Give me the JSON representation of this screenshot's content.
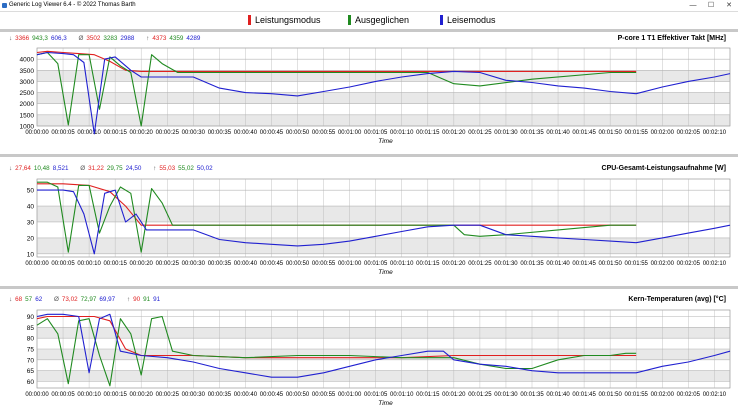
{
  "window": {
    "title": "Generic Log Viewer 6.4 - © 2022 Thomas Barth",
    "minimize_label": "—",
    "maximize_label": "☐",
    "close_label": "✕"
  },
  "legend": [
    {
      "label": "Leistungsmodus",
      "color": "#e02020"
    },
    {
      "label": "Ausgeglichen",
      "color": "#208a20"
    },
    {
      "label": "Leisemodus",
      "color": "#2020d0"
    }
  ],
  "colors": {
    "series": [
      "#e02020",
      "#208a20",
      "#2020d0"
    ],
    "grid": "#b4b4b4",
    "band": "#e8e8e8",
    "stats_grey": "#555555"
  },
  "x_tick_labels": [
    "00:00:00",
    "00:00:05",
    "00:00:10",
    "00:00:15",
    "00:00:20",
    "00:00:25",
    "00:00:30",
    "00:00:35",
    "00:00:40",
    "00:00:45",
    "00:00:50",
    "00:00:55",
    "00:01:00",
    "00:01:05",
    "00:01:10",
    "00:01:15",
    "00:01:20",
    "00:01:25",
    "00:01:30",
    "00:01:35",
    "00:01:40",
    "00:01:45",
    "00:01:50",
    "00:01:55",
    "00:02:00",
    "00:02:05",
    "00:02:10"
  ],
  "chart_data": [
    {
      "type": "line",
      "title": "P-core 1 T1 Effektiver Takt [MHz]",
      "xlabel": "Time",
      "ylabel": "",
      "xlim": [
        0,
        133
      ],
      "ylim": [
        1000,
        4500
      ],
      "yticks": [
        1000,
        1500,
        2000,
        2500,
        3000,
        3500,
        4000
      ],
      "grid": true,
      "stats": {
        "min": [
          "3366",
          "943,3",
          "606,3"
        ],
        "avg": [
          "3502",
          "3283",
          "2988"
        ],
        "max": [
          "4373",
          "4359",
          "4289"
        ]
      },
      "series": [
        {
          "name": "Leistungsmodus",
          "x": [
            0,
            2,
            5,
            8,
            11,
            14,
            17,
            20,
            30,
            60,
            75,
            80,
            100,
            115
          ],
          "y": [
            4300,
            4350,
            4300,
            4250,
            4200,
            3900,
            3500,
            3450,
            3450,
            3450,
            3450,
            3450,
            3450,
            3450
          ]
        },
        {
          "name": "Ausgeglichen",
          "x": [
            0,
            2,
            4,
            6,
            8,
            10,
            12,
            14,
            16,
            18,
            20,
            22,
            24,
            27,
            45,
            60,
            75,
            80,
            85,
            95,
            110,
            115
          ],
          "y": [
            4200,
            4300,
            3800,
            1050,
            4200,
            4200,
            1750,
            4100,
            3700,
            3400,
            1000,
            4200,
            3800,
            3400,
            3400,
            3400,
            3400,
            2900,
            2800,
            3100,
            3400,
            3400
          ]
        },
        {
          "name": "Leisemodus",
          "x": [
            0,
            2,
            5,
            7,
            9,
            11,
            13,
            15,
            18,
            20,
            25,
            30,
            35,
            40,
            45,
            50,
            55,
            60,
            65,
            70,
            75,
            80,
            85,
            90,
            95,
            100,
            105,
            110,
            115,
            120,
            125,
            130,
            133
          ],
          "y": [
            4200,
            4300,
            4250,
            4200,
            3850,
            650,
            4000,
            4100,
            3500,
            3200,
            3200,
            3200,
            2700,
            2500,
            2450,
            2350,
            2550,
            2750,
            3000,
            3200,
            3350,
            3450,
            3400,
            3050,
            2950,
            2800,
            2700,
            2550,
            2450,
            2750,
            3000,
            3200,
            3350
          ]
        }
      ]
    },
    {
      "type": "line",
      "title": "CPU-Gesamt-Leistungsaufnahme [W]",
      "xlabel": "Time",
      "ylabel": "",
      "xlim": [
        0,
        133
      ],
      "ylim": [
        8,
        57
      ],
      "yticks": [
        10,
        20,
        30,
        40,
        50
      ],
      "grid": true,
      "stats": {
        "min": [
          "27,64",
          "10,48",
          "8,521"
        ],
        "avg": [
          "31,22",
          "29,75",
          "24,50"
        ],
        "max": [
          "55,03",
          "55,02",
          "50,02"
        ]
      },
      "series": [
        {
          "name": "Leistungsmodus",
          "x": [
            0,
            5,
            10,
            14,
            17,
            20,
            25,
            60,
            80,
            100,
            115
          ],
          "y": [
            54,
            54,
            53,
            49,
            40,
            28,
            28,
            28,
            28,
            28,
            28
          ]
        },
        {
          "name": "Ausgeglichen",
          "x": [
            0,
            2,
            4,
            6,
            8,
            10,
            12,
            14,
            16,
            18,
            20,
            22,
            24,
            26,
            30,
            60,
            80,
            82,
            85,
            90,
            100,
            110,
            115
          ],
          "y": [
            55,
            55,
            52,
            11,
            53,
            53,
            23,
            40,
            52,
            48,
            11,
            51,
            42,
            28,
            28,
            28,
            28,
            22,
            21,
            22,
            25,
            28,
            28
          ]
        },
        {
          "name": "Leisemodus",
          "x": [
            0,
            2,
            5,
            7,
            9,
            11,
            13,
            15,
            17,
            19,
            21,
            23,
            25,
            30,
            35,
            40,
            45,
            50,
            55,
            60,
            65,
            70,
            75,
            80,
            85,
            90,
            95,
            100,
            105,
            110,
            115,
            120,
            125,
            130,
            133
          ],
          "y": [
            50,
            50,
            50,
            49,
            35,
            10,
            48,
            50,
            30,
            35,
            25,
            25,
            25,
            25,
            19,
            17,
            16,
            15,
            16,
            18,
            21,
            24,
            27,
            28,
            28,
            22,
            21,
            20,
            19,
            18,
            17,
            20,
            23,
            26,
            28
          ]
        }
      ]
    },
    {
      "type": "line",
      "title": "Kern-Temperaturen (avg) [°C]",
      "xlabel": "Time",
      "ylabel": "",
      "xlim": [
        0,
        133
      ],
      "ylim": [
        57,
        93
      ],
      "yticks": [
        60,
        65,
        70,
        75,
        80,
        85,
        90
      ],
      "grid": true,
      "stats": {
        "min": [
          "68",
          "57",
          "62"
        ],
        "avg": [
          "73,02",
          "72,97",
          "69,97"
        ],
        "max": [
          "90",
          "91",
          "91"
        ]
      },
      "series": [
        {
          "name": "Leistungsmodus",
          "x": [
            0,
            2,
            5,
            8,
            11,
            14,
            17,
            20,
            30,
            40,
            60,
            70,
            80,
            90,
            100,
            110,
            115
          ],
          "y": [
            89,
            90,
            90,
            90,
            90,
            88,
            75,
            72,
            72,
            71,
            71,
            71,
            72,
            72,
            72,
            72,
            72
          ]
        },
        {
          "name": "Ausgeglichen",
          "x": [
            0,
            2,
            4,
            6,
            8,
            10,
            12,
            14,
            16,
            18,
            20,
            22,
            24,
            26,
            30,
            40,
            50,
            55,
            60,
            70,
            80,
            85,
            90,
            95,
            100,
            105,
            110,
            113,
            115
          ],
          "y": [
            86,
            89,
            82,
            59,
            88,
            89,
            72,
            58,
            89,
            82,
            63,
            89,
            90,
            74,
            72,
            71,
            72,
            72,
            72,
            71,
            71,
            68,
            66,
            66,
            70,
            72,
            72,
            73,
            73
          ]
        },
        {
          "name": "Leisemodus",
          "x": [
            0,
            2,
            5,
            8,
            10,
            12,
            14,
            16,
            18,
            20,
            25,
            30,
            35,
            40,
            45,
            50,
            55,
            60,
            65,
            70,
            75,
            78,
            80,
            85,
            90,
            95,
            100,
            105,
            110,
            115,
            120,
            125,
            130,
            133
          ],
          "y": [
            90,
            91,
            91,
            90,
            64,
            89,
            91,
            74,
            73,
            72,
            71,
            69,
            66,
            64,
            62,
            62,
            64,
            67,
            70,
            72,
            74,
            74,
            70,
            68,
            67,
            65,
            64,
            64,
            64,
            64,
            67,
            69,
            72,
            74
          ]
        }
      ]
    }
  ]
}
